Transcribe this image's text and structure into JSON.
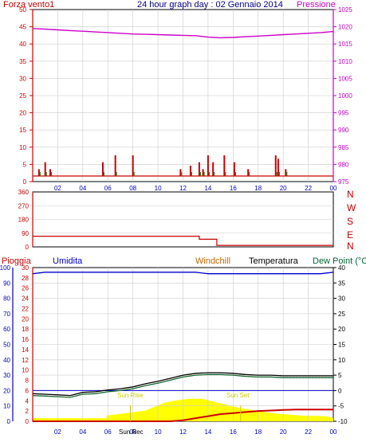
{
  "header": {
    "left_label": "Forza vento1",
    "title": "24 hour graph day : 02 Gennaio 2014",
    "right_label": "Pressione"
  },
  "wind_panel": {
    "y_left_ticks": [
      "0",
      "5",
      "10",
      "15",
      "20",
      "25",
      "30",
      "35",
      "40",
      "45",
      "50"
    ],
    "y_right_ticks": [
      "975",
      "980",
      "985",
      "990",
      "995",
      "1000",
      "1005",
      "1010",
      "1015",
      "1020",
      "1025"
    ],
    "x_ticks": [
      "02",
      "04",
      "06",
      "08",
      "10",
      "12",
      "14",
      "16",
      "18",
      "20",
      "22",
      "00"
    ]
  },
  "dir_panel": {
    "y_ticks": [
      "0",
      "90",
      "180",
      "270",
      "360"
    ],
    "compass": [
      "N",
      "W",
      "S",
      "E",
      "N"
    ]
  },
  "bottom_panel": {
    "labels": {
      "rain": "Pioggia",
      "humidity": "Umidita",
      "windchill": "Windchill",
      "temperature": "Temperatura",
      "dewpoint": "Dew Point (°C"
    },
    "y_hum_ticks": [
      "0",
      "10",
      "20",
      "30",
      "40",
      "50",
      "60",
      "70",
      "80",
      "90",
      "100"
    ],
    "y_rain_ticks": [
      "0",
      "2",
      "4",
      "6",
      "8",
      "10",
      "12",
      "14",
      "16",
      "18",
      "20",
      "22",
      "24",
      "26",
      "28",
      "30"
    ],
    "y_temp_ticks": [
      "-10",
      "-5",
      "0",
      "5",
      "10",
      "15",
      "20",
      "25",
      "30",
      "35",
      "40"
    ],
    "x_ticks": [
      "02",
      "04",
      "06",
      "08",
      "10",
      "12",
      "14",
      "16",
      "18",
      "20",
      "22",
      "00"
    ],
    "annotations": {
      "sunrise": "Sun Rise",
      "sunset": "Sun Set",
      "sunrec": "Sun Rec"
    }
  },
  "colors": {
    "wind": "#cc0000",
    "gust": "#008000",
    "pressure": "#cc00cc",
    "direction": "#cc0000",
    "humidity": "#0000cc",
    "temperature": "#000000",
    "dewpoint": "#006633",
    "windchill": "#cc6600",
    "rain": "#cc0000",
    "solar": "#ffff00",
    "title": "#00008b",
    "axis_blue": "#0000cc"
  },
  "chart_data": [
    {
      "type": "line",
      "name": "wind and pressure",
      "x": [
        0,
        1,
        2,
        3,
        4,
        5,
        6,
        7,
        8,
        9,
        10,
        11,
        12,
        13,
        14,
        15,
        16,
        17,
        18,
        19,
        20,
        21,
        22,
        23,
        24
      ],
      "series": [
        {
          "name": "Pressione",
          "axis": "right",
          "values": [
            1019.5,
            1019.3,
            1019.1,
            1018.9,
            1018.7,
            1018.5,
            1018.3,
            1018.1,
            1017.9,
            1017.8,
            1017.7,
            1017.6,
            1017.5,
            1017.4,
            1017.0,
            1016.8,
            1016.9,
            1017.1,
            1017.3,
            1017.5,
            1017.7,
            1017.9,
            1018.1,
            1018.3,
            1018.6
          ]
        },
        {
          "name": "Forza vento1",
          "axis": "left",
          "bars": [
            [
              0.5,
              2
            ],
            [
              1.0,
              4
            ],
            [
              1.4,
              2
            ],
            [
              5.6,
              4
            ],
            [
              6.6,
              6
            ],
            [
              8.0,
              6
            ],
            [
              11.8,
              2
            ],
            [
              12.6,
              3
            ],
            [
              13.3,
              4
            ],
            [
              13.6,
              2
            ],
            [
              14.0,
              6
            ],
            [
              14.4,
              4
            ],
            [
              15.3,
              6
            ],
            [
              16.1,
              4
            ],
            [
              17.2,
              2
            ],
            [
              19.4,
              6
            ],
            [
              19.6,
              5
            ],
            [
              20.2,
              2
            ]
          ]
        }
      ],
      "ylim_left": [
        0,
        50
      ],
      "ylim_right": [
        975,
        1025
      ],
      "xlim": [
        0,
        24
      ]
    },
    {
      "type": "line",
      "name": "wind direction",
      "x": [
        0,
        13.3,
        13.3,
        14.7,
        14.7,
        24
      ],
      "values": [
        70,
        70,
        50,
        50,
        10,
        10
      ],
      "ylim": [
        0,
        360
      ],
      "xlim": [
        0,
        24
      ]
    },
    {
      "type": "line",
      "name": "humidity temperature rain",
      "x": [
        0,
        1,
        2,
        3,
        4,
        5,
        6,
        7,
        8,
        9,
        10,
        11,
        12,
        13,
        14,
        15,
        16,
        17,
        18,
        19,
        20,
        21,
        22,
        23,
        24
      ],
      "series": [
        {
          "name": "Umidita",
          "axis": "hum",
          "values": [
            96,
            97,
            97,
            97,
            97,
            97,
            97,
            97,
            97,
            97,
            97,
            97,
            97,
            97,
            96,
            96,
            96,
            96,
            96,
            96,
            96,
            96,
            96,
            96,
            97
          ]
        },
        {
          "name": "Temperatura",
          "axis": "temp",
          "values": [
            -1.0,
            -1.2,
            -1.4,
            -1.6,
            -0.6,
            -0.4,
            0.2,
            0.6,
            1.2,
            2.2,
            3.0,
            4.0,
            5.0,
            5.6,
            5.8,
            5.8,
            5.6,
            5.2,
            5.0,
            5.0,
            4.8,
            4.8,
            4.8,
            4.8,
            4.8
          ]
        },
        {
          "name": "Dew Point (°C",
          "axis": "temp",
          "values": [
            -1.6,
            -1.8,
            -2.0,
            -2.2,
            -1.2,
            -1.0,
            -0.4,
            0.0,
            0.6,
            1.6,
            2.4,
            3.4,
            4.4,
            5.0,
            5.2,
            5.2,
            5.0,
            4.6,
            4.4,
            4.4,
            4.2,
            4.2,
            4.2,
            4.2,
            4.2
          ]
        },
        {
          "name": "Pioggia",
          "axis": "rain",
          "values": [
            0,
            0,
            0,
            0,
            0,
            0,
            0,
            0,
            0,
            0,
            0,
            0,
            0.2,
            0.6,
            1.0,
            1.4,
            1.6,
            1.8,
            2.0,
            2.1,
            2.2,
            2.3,
            2.3,
            2.3,
            2.3
          ]
        }
      ],
      "dewpoint_zero_line": 0,
      "ylim_hum": [
        0,
        100
      ],
      "ylim_temp": [
        -10,
        40
      ],
      "ylim_rain": [
        0,
        30
      ],
      "xlim": [
        0,
        24
      ]
    }
  ]
}
